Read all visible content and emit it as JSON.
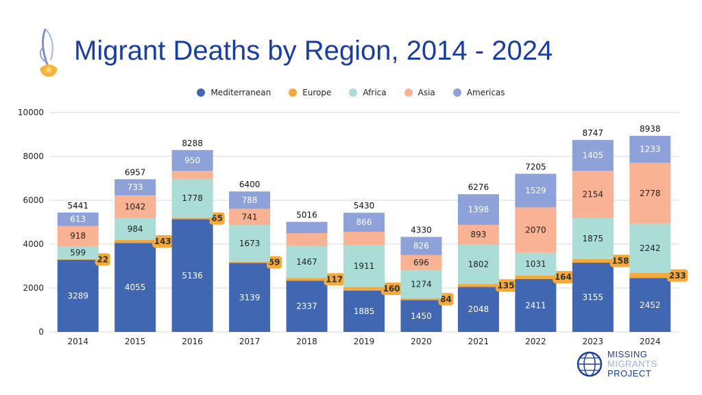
{
  "header": {
    "title": "Migrant Deaths by Region, 2014 - 2024"
  },
  "logo": {
    "line1": "MISSING",
    "line2": "MIGRANTS",
    "line3": "PROJECT"
  },
  "colors": {
    "Mediterranean": "#4267b2",
    "Europe": "#f4a93a",
    "Africa": "#abdcd6",
    "Asia": "#f9b394",
    "Americas": "#8ea2d9",
    "title": "#1a3da0"
  },
  "chart_data": {
    "type": "bar",
    "stacked": true,
    "title": "Migrant Deaths by Region, 2014 - 2024",
    "xlabel": "",
    "ylabel": "",
    "ylim": [
      0,
      10000
    ],
    "yticks": [
      0,
      2000,
      4000,
      6000,
      8000,
      10000
    ],
    "grid": true,
    "legend_position": "top",
    "categories": [
      "2014",
      "2015",
      "2016",
      "2017",
      "2018",
      "2019",
      "2020",
      "2021",
      "2022",
      "2023",
      "2024"
    ],
    "series": [
      {
        "name": "Mediterranean",
        "values": [
          3289,
          4055,
          5136,
          3139,
          2337,
          1885,
          1450,
          2048,
          2411,
          3155,
          2452
        ],
        "labels": [
          "3289",
          "4055",
          "5136",
          "3139",
          "2337",
          "1885",
          "1450",
          "2048",
          "2411",
          "3155",
          "2452"
        ]
      },
      {
        "name": "Europe",
        "values": [
          22,
          143,
          65,
          59,
          117,
          160,
          84,
          135,
          164,
          158,
          233
        ],
        "labels": [
          "22",
          "143",
          "65",
          "59",
          "117",
          "160",
          "84",
          "135",
          "164",
          "158",
          "233"
        ]
      },
      {
        "name": "Africa",
        "values": [
          599,
          984,
          1778,
          1673,
          1467,
          1911,
          1274,
          1802,
          1031,
          1875,
          2242
        ],
        "labels": [
          "599",
          "984",
          "1778",
          "1673",
          "1467",
          "1911",
          "1274",
          "1802",
          "1031",
          "1875",
          "2242"
        ]
      },
      {
        "name": "Asia",
        "values": [
          918,
          1042,
          359,
          741,
          579,
          608,
          696,
          893,
          2070,
          2154,
          2778
        ],
        "labels": [
          "918",
          "1042",
          "",
          "741",
          "",
          "",
          "696",
          "893",
          "2070",
          "2154",
          "2778"
        ]
      },
      {
        "name": "Americas",
        "values": [
          613,
          733,
          950,
          788,
          516,
          866,
          826,
          1398,
          1529,
          1405,
          1233
        ],
        "labels": [
          "613",
          "733",
          "950",
          "788",
          "",
          "866",
          "826",
          "1398",
          "1529",
          "1405",
          "1233"
        ]
      }
    ],
    "totals": [
      "5441",
      "6957",
      "8288",
      "6400",
      "5016",
      "5430",
      "4330",
      "6276",
      "7205",
      "8747",
      "8938"
    ]
  }
}
